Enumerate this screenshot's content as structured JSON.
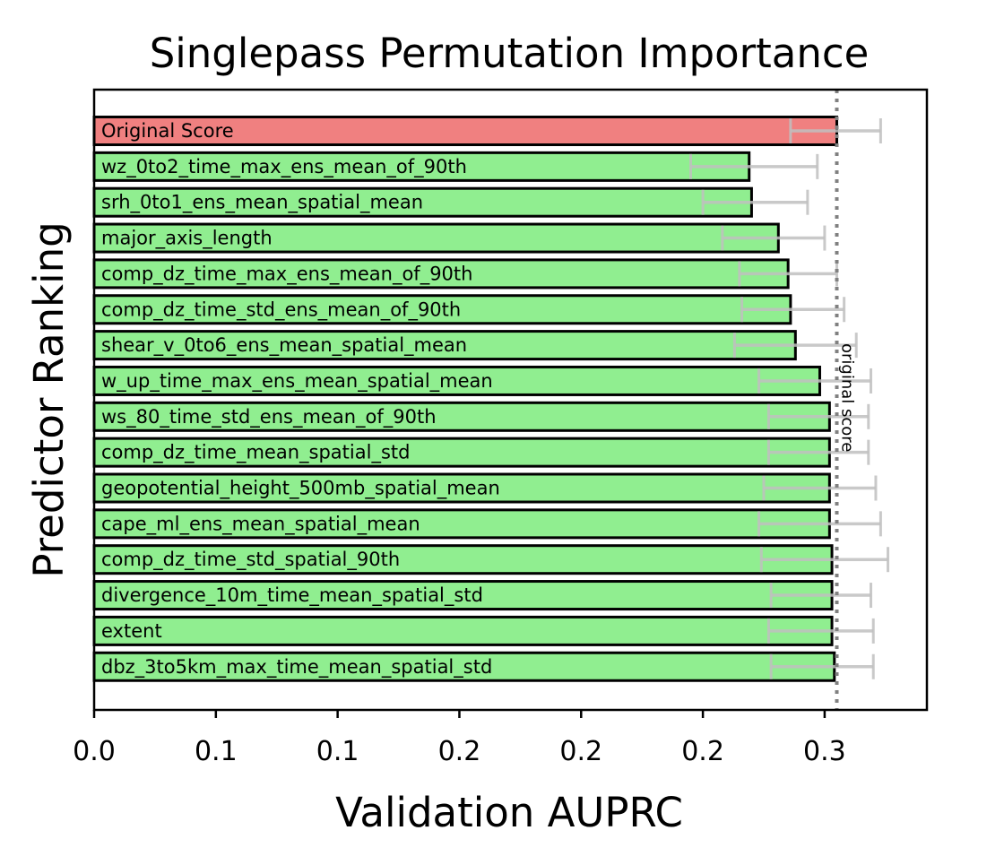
{
  "colors": {
    "original_bar": "#f08080",
    "predictor_bar": "#90ee90",
    "bar_edge": "#000000",
    "error_bar": "#c0c0c0",
    "reference_line": "#808080"
  },
  "chart_data": {
    "type": "bar",
    "orientation": "horizontal",
    "title": "Singlepass Permutation Importance",
    "xlabel": "Validation AUPRC",
    "ylabel": "Predictor Ranking",
    "xlim": [
      0.0,
      0.342
    ],
    "xticks": [
      0.0,
      0.05,
      0.1,
      0.15,
      0.2,
      0.25,
      0.3
    ],
    "xtick_labels": [
      "0.0",
      "0.1",
      "0.1",
      "0.2",
      "0.2",
      "0.2",
      "0.3"
    ],
    "grid": false,
    "reference_line": {
      "value": 0.305,
      "label": "original score"
    },
    "categories": [
      "Original Score",
      "wz_0to2_time_max_ens_mean_of_90th",
      "srh_0to1_ens_mean_spatial_mean",
      "major_axis_length",
      "comp_dz_time_max_ens_mean_of_90th",
      "comp_dz_time_std_ens_mean_of_90th",
      "shear_v_0to6_ens_mean_spatial_mean",
      "w_up_time_max_ens_mean_spatial_mean",
      "ws_80_time_std_ens_mean_of_90th",
      "comp_dz_time_mean_spatial_std",
      "geopotential_height_500mb_spatial_mean",
      "cape_ml_ens_mean_spatial_mean",
      "comp_dz_time_std_spatial_90th",
      "divergence_10m_time_mean_spatial_std",
      "extent",
      "dbz_3to5km_max_time_mean_spatial_std"
    ],
    "values": [
      0.305,
      0.269,
      0.27,
      0.281,
      0.285,
      0.286,
      0.288,
      0.298,
      0.302,
      0.302,
      0.302,
      0.302,
      0.303,
      0.303,
      0.303,
      0.304
    ],
    "error_low": [
      0.286,
      0.245,
      0.25,
      0.258,
      0.265,
      0.266,
      0.263,
      0.273,
      0.277,
      0.277,
      0.275,
      0.273,
      0.274,
      0.278,
      0.277,
      0.278
    ],
    "error_high": [
      0.323,
      0.297,
      0.293,
      0.3,
      0.305,
      0.308,
      0.313,
      0.319,
      0.318,
      0.318,
      0.321,
      0.323,
      0.326,
      0.319,
      0.32,
      0.32
    ]
  }
}
